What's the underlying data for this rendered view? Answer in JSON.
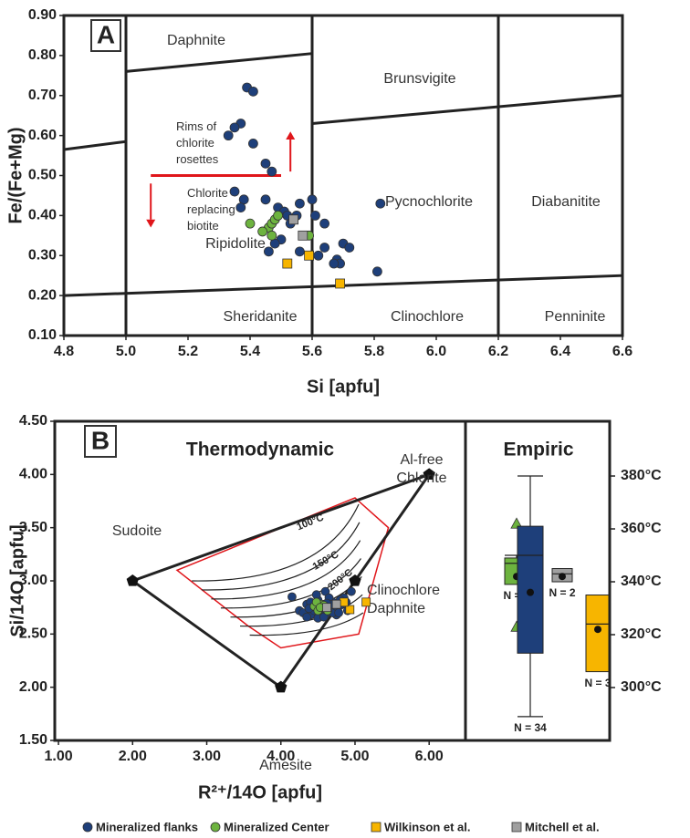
{
  "chart_data": [
    {
      "type": "scatter",
      "panel": "A",
      "xlabel": "Si [apfu]",
      "ylabel": "Fe/(Fe+Mg)",
      "xlim": [
        4.8,
        6.6
      ],
      "ylim": [
        0.1,
        0.9
      ],
      "xticks": [
        4.8,
        {
          "value": 5,
          "label": "5.0"
        },
        5.2,
        5.4,
        5.6,
        5.8,
        {
          "value": 6,
          "label": "6.0"
        },
        6.2,
        6.4,
        6.6
      ],
      "yticks": [
        {
          "value": 0.1,
          "label": "0.10"
        },
        {
          "value": 0.2,
          "label": "0.20"
        },
        {
          "value": 0.3,
          "label": "0.30"
        },
        {
          "value": 0.4,
          "label": "0.40"
        },
        {
          "value": 0.5,
          "label": "0.50"
        },
        {
          "value": 0.6,
          "label": "0.60"
        },
        {
          "value": 0.7,
          "label": "0.70"
        },
        {
          "value": 0.8,
          "label": "0.80"
        },
        {
          "value": 0.9,
          "label": "0.90"
        }
      ],
      "fields": [
        "Daphnite",
        "Brunsvigite",
        "Pycnochlorite",
        "Diabanitite",
        "Ripidolite",
        "Sheridanite",
        "Clinochlore",
        "Penninite"
      ],
      "annotations": [
        {
          "lines": [
            "Rims of",
            "chlorite",
            "rosettes"
          ]
        },
        {
          "lines": [
            "Chlorite",
            "replacing",
            "biotite"
          ]
        }
      ],
      "series": [
        {
          "color": "#1e3f7a",
          "marker": "circle",
          "x": [
            5.39,
            5.41,
            5.37,
            5.35,
            5.33,
            5.41,
            5.45,
            5.47,
            5.35,
            5.38,
            5.37,
            5.45,
            5.49,
            5.51,
            5.52,
            5.56,
            5.55,
            5.53,
            5.6,
            5.61,
            5.64,
            5.5,
            5.48,
            5.46,
            5.56,
            5.62,
            5.64,
            5.68,
            5.69,
            5.67,
            5.7,
            5.72,
            5.82,
            5.81
          ],
          "y": [
            0.72,
            0.71,
            0.63,
            0.62,
            0.6,
            0.58,
            0.53,
            0.51,
            0.46,
            0.44,
            0.42,
            0.44,
            0.42,
            0.41,
            0.4,
            0.43,
            0.4,
            0.38,
            0.44,
            0.4,
            0.38,
            0.34,
            0.33,
            0.31,
            0.31,
            0.3,
            0.32,
            0.29,
            0.28,
            0.28,
            0.33,
            0.32,
            0.43,
            0.26
          ]
        },
        {
          "color": "#6db33f",
          "marker": "circle",
          "x": [
            5.4,
            5.46,
            5.47,
            5.48,
            5.49,
            5.47,
            5.44,
            5.59
          ],
          "y": [
            0.38,
            0.37,
            0.38,
            0.39,
            0.4,
            0.35,
            0.36,
            0.35
          ]
        },
        {
          "color": "#f7b500",
          "marker": "square",
          "x": [
            5.52,
            5.59,
            5.69
          ],
          "y": [
            0.28,
            0.3,
            0.23
          ]
        },
        {
          "color": "#a0a0a0",
          "marker": "square",
          "x": [
            5.54,
            5.57
          ],
          "y": [
            0.39,
            0.35
          ]
        }
      ]
    },
    {
      "type": "scatter",
      "panel": "B",
      "title": "Thermodynamic",
      "xlabel": "R²⁺/14O [apfu]",
      "ylabel": "Si/14O [apfu]",
      "xlim": [
        0.95,
        6.49
      ],
      "ylim": [
        1.5,
        4.5
      ],
      "xticks": [
        {
          "value": 1,
          "label": "1.00"
        },
        {
          "value": 2,
          "label": "2.00"
        },
        {
          "value": 3,
          "label": "3.00"
        },
        {
          "value": 4,
          "label": "4.00"
        },
        {
          "value": 5,
          "label": "5.00"
        },
        {
          "value": 6,
          "label": "6.00"
        }
      ],
      "yticks": [
        {
          "value": 1.5,
          "label": "1.50"
        },
        {
          "value": 2,
          "label": "2.00"
        },
        {
          "value": 2.5,
          "label": "2.50"
        },
        {
          "value": 3,
          "label": "3.00"
        },
        {
          "value": 3.5,
          "label": "3.50"
        },
        {
          "value": 4,
          "label": "4.00"
        },
        {
          "value": 4.5,
          "label": "4.50"
        }
      ],
      "end_members": [
        {
          "lines": [
            "Sudoite"
          ],
          "x": 2,
          "y": 3
        },
        {
          "lines": [
            "Amesite"
          ],
          "x": 4,
          "y": 2
        },
        {
          "lines": [
            "Al-free",
            "Chlorite"
          ],
          "x": 6,
          "y": 4
        },
        {
          "lines": [
            "Clinochlore",
            "Daphnite"
          ],
          "x": 5,
          "y": 3
        }
      ],
      "isotherms": [
        "100°C",
        "150°C",
        "200°C"
      ],
      "series": [
        {
          "name": "Mineralized flanks",
          "color": "#1e3f7a",
          "marker": "circle",
          "x": [
            4.15,
            4.25,
            4.3,
            4.35,
            4.4,
            4.45,
            4.5,
            4.55,
            4.6,
            4.65,
            4.7,
            4.75,
            4.8,
            4.85,
            4.9,
            4.95,
            4.35,
            4.4,
            4.45,
            4.5,
            4.55,
            4.6,
            4.65,
            4.7,
            4.75,
            4.8,
            4.38,
            4.48,
            4.58,
            4.68,
            4.78,
            4.88,
            4.52,
            4.62
          ],
          "y": [
            2.85,
            2.72,
            2.7,
            2.78,
            2.68,
            2.75,
            2.82,
            2.7,
            2.9,
            2.73,
            2.8,
            2.68,
            2.77,
            2.84,
            2.72,
            2.9,
            2.66,
            2.8,
            2.72,
            2.65,
            2.78,
            2.68,
            2.84,
            2.7,
            2.76,
            2.82,
            2.74,
            2.87,
            2.66,
            2.78,
            2.7,
            2.8,
            2.74,
            2.79
          ]
        },
        {
          "name": "Mineralized Center",
          "color": "#6db33f",
          "marker": "circle",
          "x": [
            4.45,
            4.5,
            4.55,
            4.6,
            4.48,
            4.58,
            4.63,
            4.53
          ],
          "y": [
            2.76,
            2.72,
            2.78,
            2.74,
            2.8,
            2.77,
            2.72,
            2.75
          ]
        },
        {
          "name": "Wilkinson et al.",
          "color": "#f7b500",
          "marker": "square",
          "x": [
            5.15,
            4.93,
            4.85
          ],
          "y": [
            2.8,
            2.73,
            2.8
          ]
        },
        {
          "name": "Mitchell et al.",
          "color": "#a0a0a0",
          "marker": "square",
          "x": [
            4.75,
            4.62
          ],
          "y": [
            2.78,
            2.75
          ]
        }
      ],
      "empiric": {
        "title": "Empiric",
        "y2lim": [
          280,
          400.7
        ],
        "y2ticks": [
          {
            "value": 300,
            "label": "300°C"
          },
          {
            "value": 320,
            "label": "320°C"
          },
          {
            "value": 340,
            "label": "340°C"
          },
          {
            "value": 360,
            "label": "360°C"
          },
          {
            "value": 380,
            "label": "380°C"
          }
        ],
        "boxes": [
          {
            "color": "#6db33f",
            "n_label": "N = 8",
            "q1": 339,
            "median": 347,
            "q3": 349,
            "max": 350,
            "mean": 342,
            "outliers": [
              362,
              323
            ]
          },
          {
            "color": "#1e3f7a",
            "n_label": "N = 34",
            "min": 289,
            "q1": 313,
            "median": 350,
            "q3": 361,
            "max": 380,
            "mean": 336
          },
          {
            "color": "#a0a0a0",
            "n_label": "N = 2",
            "q1": 340,
            "median": 343,
            "q3": 345,
            "mean": 342
          },
          {
            "color": "#f7b500",
            "n_label": "N = 3",
            "q1": 306,
            "median": 324,
            "q3": 335,
            "mean": 322
          }
        ]
      }
    }
  ]
}
